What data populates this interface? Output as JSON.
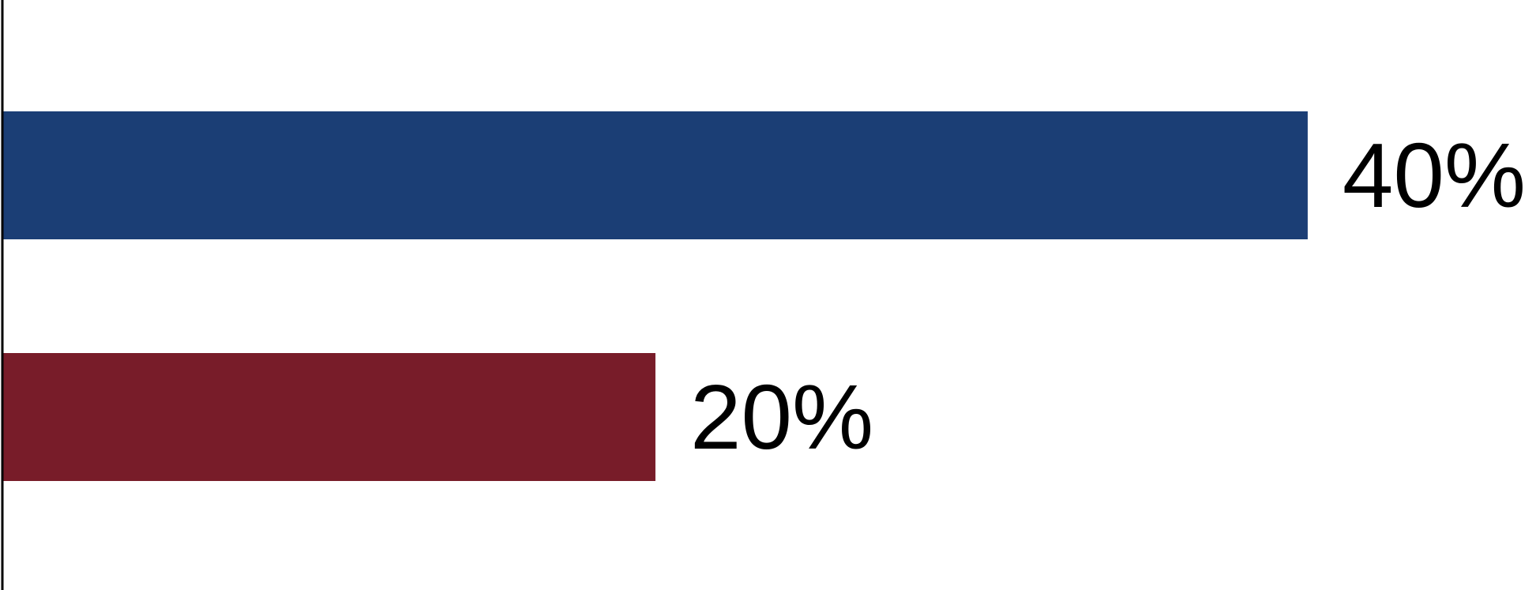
{
  "chart_data": {
    "type": "bar",
    "orientation": "horizontal",
    "categories": [
      "",
      ""
    ],
    "values": [
      40,
      20
    ],
    "value_labels": [
      "40%",
      "20%"
    ],
    "bar_colors": [
      "#1b3e75",
      "#781c29"
    ],
    "xlim": [
      0,
      47
    ],
    "grid": false,
    "legend": "none",
    "title": "",
    "xlabel": "",
    "ylabel": ""
  }
}
